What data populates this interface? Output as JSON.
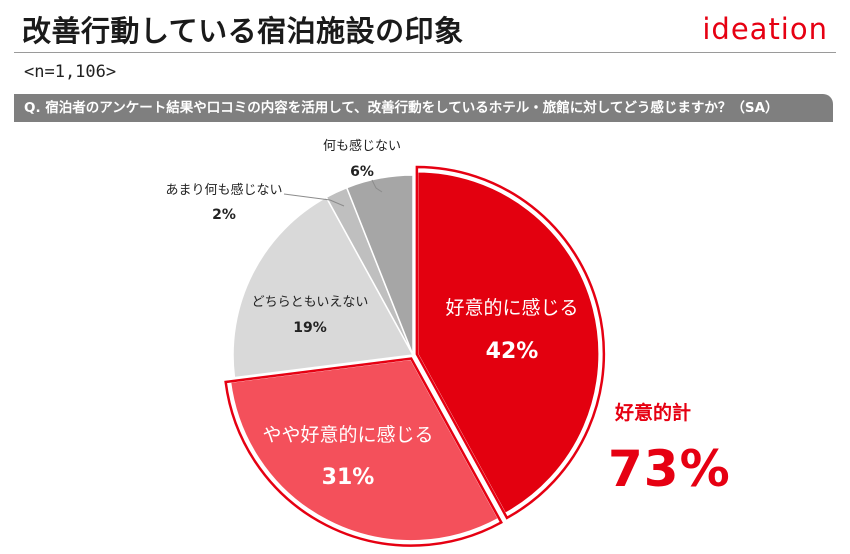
{
  "header": {
    "title": "改善行動している宿泊施設の印象",
    "brand": "ideation",
    "sample": "<n=1,106>"
  },
  "question": "Q. 宿泊者のアンケート結果や口コミの内容を活用して、改善行動をしているホテル・旅館に対してどう感じますか？（SA）",
  "colors": {
    "accent": "#e60012",
    "favorable": "#e3000f",
    "somewhat_favorable": "#f4505b",
    "neutral": "#d9d9d9",
    "not_much": "#bfbfbf",
    "none": "#a6a6a6"
  },
  "chart_data": {
    "type": "pie",
    "start": "12 o'clock, clockwise",
    "slices": [
      {
        "label": "好意的に感じる",
        "percent_label": "42%",
        "value": 42,
        "color": "#e3000f"
      },
      {
        "label": "やや好意的に感じる",
        "percent_label": "31%",
        "value": 31,
        "color": "#f4505b"
      },
      {
        "label": "どちらともいえない",
        "percent_label": "19%",
        "value": 19,
        "color": "#d9d9d9"
      },
      {
        "label": "あまり何も感じない",
        "percent_label": "2%",
        "value": 2,
        "color": "#bfbfbf"
      },
      {
        "label": "何も感じない",
        "percent_label": "6%",
        "value": 6,
        "color": "#a6a6a6"
      }
    ],
    "highlighted": [
      "好意的に感じる",
      "やや好意的に感じる"
    ],
    "total_label": "好意的計",
    "total_value": "73%"
  }
}
